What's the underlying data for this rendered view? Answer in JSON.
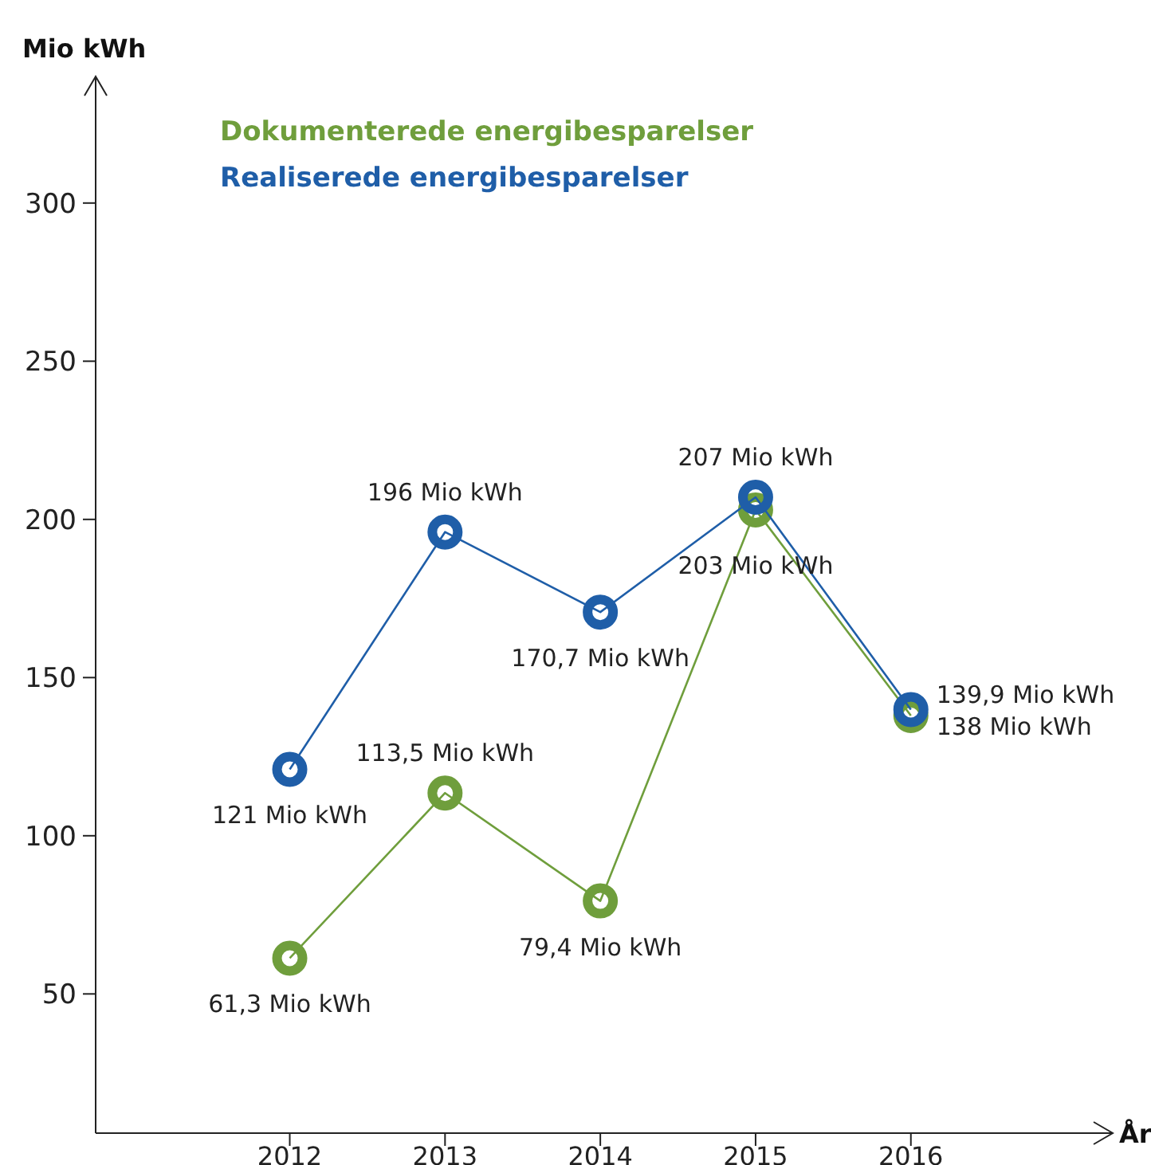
{
  "chart_data": {
    "type": "line",
    "ylabel": "Mio kWh",
    "xlabel": "År",
    "x": [
      2012,
      2013,
      2014,
      2015,
      2016
    ],
    "xlim": [
      2010.75,
      2017.3
    ],
    "xticks": [
      2012,
      2013,
      2014,
      2015,
      2016
    ],
    "ylim": [
      6,
      340
    ],
    "yticks": [
      50,
      100,
      150,
      200,
      250,
      300
    ],
    "grid": false,
    "legend": "top left",
    "marker": "circle",
    "line_style": "solid",
    "series": [
      {
        "name": "Dokumenterede energibesparelser",
        "color": "#6f9e3c",
        "values": [
          61.3,
          113.5,
          79.4,
          203,
          138
        ],
        "value_labels": [
          "61,3 Mio kWh",
          "113,5 Mio kWh",
          "79,4 Mio kWh",
          "203 Mio kWh",
          "138 Mio kWh"
        ]
      },
      {
        "name": "Realiserede energibesparelser",
        "color": "#1f5ea8",
        "values": [
          121,
          196,
          170.7,
          207,
          139.9
        ],
        "value_labels": [
          "121 Mio kWh",
          "196 Mio kWh",
          "170,7 Mio kWh",
          "207 Mio kWh",
          "139,9 Mio kWh"
        ]
      }
    ]
  }
}
